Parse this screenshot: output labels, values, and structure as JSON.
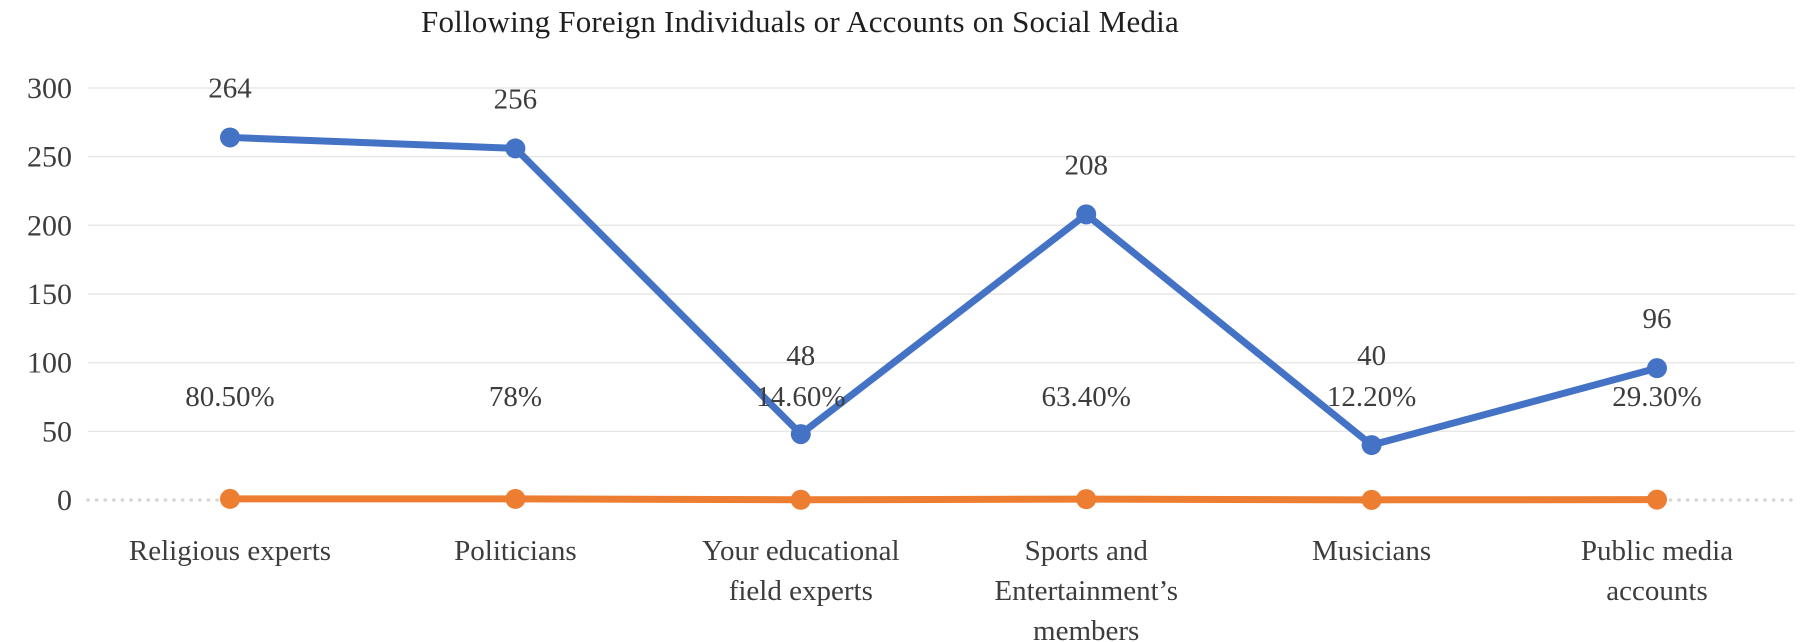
{
  "title": "Following Foreign Individuals or Accounts on Social Media",
  "chart_data": {
    "type": "line",
    "title": "Following Foreign Individuals or Accounts on Social Media",
    "categories": [
      "Religious experts",
      "Politicians",
      "Your educational field experts",
      "Sports and Entertainment’s members",
      "Musicians",
      "Public media accounts"
    ],
    "category_lines": [
      [
        "Religious experts"
      ],
      [
        "Politicians"
      ],
      [
        "Your educational",
        "field experts"
      ],
      [
        "Sports and",
        "Entertainment’s",
        "members"
      ],
      [
        "Musicians"
      ],
      [
        "Public media",
        "accounts"
      ]
    ],
    "series": [
      {
        "name": "count",
        "color": "#4472C4",
        "values": [
          264,
          256,
          48,
          208,
          40,
          96
        ],
        "labels": [
          "264",
          "256",
          "48",
          "208",
          "40",
          "96"
        ],
        "label_position": "above"
      },
      {
        "name": "percentage",
        "color": "#ED7D31",
        "values": [
          0.805,
          0.78,
          0.146,
          0.634,
          0.122,
          0.293
        ],
        "labels": [
          "80.50%",
          "78%",
          "14.60%",
          "63.40%",
          "12.20%",
          "29.30%"
        ],
        "label_position": "above"
      }
    ],
    "y_ticks": [
      0,
      50,
      100,
      150,
      200,
      250,
      300
    ],
    "ylim": [
      0,
      300
    ],
    "grid": true,
    "legend": "none",
    "xlabel": "",
    "ylabel": "",
    "gridline_color": "#E7E7E7",
    "zero_line_color": "#D6D6D6",
    "text_color": "#3d3d3d"
  }
}
